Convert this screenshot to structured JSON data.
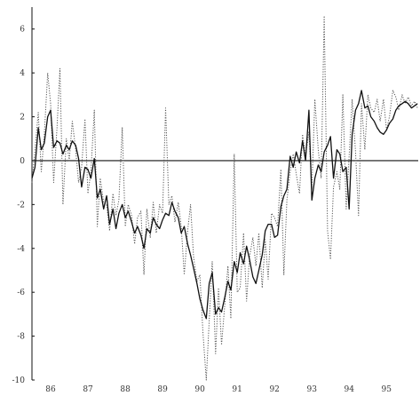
{
  "chart_data": {
    "type": "line",
    "title": "",
    "xlabel": "",
    "ylabel": "",
    "xlim": [
      1985.5,
      1995.85
    ],
    "ylim": [
      -10,
      7
    ],
    "zero_line": true,
    "grid": false,
    "legend": "none",
    "x_tick_values": [
      1986,
      1987,
      1988,
      1989,
      1990,
      1991,
      1992,
      1993,
      1994,
      1995
    ],
    "x_tick_labels": [
      "86",
      "87",
      "88",
      "89",
      "90",
      "91",
      "92",
      "93",
      "94",
      "95"
    ],
    "y_tick_values": [
      6,
      4,
      2,
      0,
      -2,
      -4,
      -6,
      -8,
      -10
    ],
    "y_tick_labels": [
      "6",
      "4",
      "2",
      "0",
      "-2",
      "-4",
      "-6",
      "-8",
      "-10"
    ],
    "series": [
      {
        "style": "solid",
        "color": "#111111",
        "x": [
          1985.5,
          1985.58,
          1985.67,
          1985.75,
          1985.83,
          1985.92,
          1986.0,
          1986.08,
          1986.17,
          1986.25,
          1986.33,
          1986.42,
          1986.5,
          1986.58,
          1986.67,
          1986.75,
          1986.83,
          1986.92,
          1987.0,
          1987.08,
          1987.17,
          1987.25,
          1987.33,
          1987.42,
          1987.5,
          1987.58,
          1987.67,
          1987.75,
          1987.83,
          1987.92,
          1988.0,
          1988.08,
          1988.17,
          1988.25,
          1988.33,
          1988.42,
          1988.5,
          1988.58,
          1988.67,
          1988.75,
          1988.83,
          1988.92,
          1989.0,
          1989.08,
          1989.17,
          1989.25,
          1989.33,
          1989.42,
          1989.5,
          1989.58,
          1989.67,
          1989.75,
          1989.83,
          1989.92,
          1990.0,
          1990.08,
          1990.17,
          1990.25,
          1990.33,
          1990.42,
          1990.5,
          1990.58,
          1990.67,
          1990.75,
          1990.83,
          1990.92,
          1991.0,
          1991.08,
          1991.17,
          1991.25,
          1991.33,
          1991.42,
          1991.5,
          1991.58,
          1991.67,
          1991.75,
          1991.83,
          1991.92,
          1992.0,
          1992.08,
          1992.17,
          1992.25,
          1992.33,
          1992.42,
          1992.5,
          1992.58,
          1992.67,
          1992.75,
          1992.83,
          1992.92,
          1993.0,
          1993.08,
          1993.17,
          1993.25,
          1993.33,
          1993.42,
          1993.5,
          1993.58,
          1993.67,
          1993.75,
          1993.83,
          1993.92,
          1994.0,
          1994.08,
          1994.17,
          1994.25,
          1994.33,
          1994.42,
          1994.5,
          1994.58,
          1994.67,
          1994.75,
          1994.83,
          1994.92,
          1995.0,
          1995.08,
          1995.17,
          1995.25,
          1995.33,
          1995.42,
          1995.5,
          1995.58,
          1995.67,
          1995.75,
          1995.83
        ],
        "y": [
          -0.8,
          -0.3,
          1.5,
          0.5,
          0.8,
          2.0,
          2.3,
          0.6,
          0.9,
          0.8,
          0.3,
          0.7,
          0.5,
          0.9,
          0.7,
          0.1,
          -1.2,
          -0.3,
          -0.4,
          -0.8,
          0.1,
          -1.7,
          -1.3,
          -2.2,
          -1.6,
          -2.9,
          -2.2,
          -3.1,
          -2.4,
          -2.0,
          -2.6,
          -2.3,
          -2.8,
          -3.3,
          -3.0,
          -3.4,
          -4.0,
          -3.1,
          -3.3,
          -2.6,
          -2.9,
          -3.1,
          -2.7,
          -2.4,
          -2.5,
          -1.9,
          -2.3,
          -2.6,
          -3.3,
          -3.0,
          -3.8,
          -4.3,
          -4.9,
          -5.6,
          -6.3,
          -6.8,
          -7.2,
          -5.6,
          -5.1,
          -7.0,
          -6.7,
          -6.9,
          -6.2,
          -5.5,
          -5.9,
          -4.6,
          -5.1,
          -4.2,
          -4.7,
          -3.9,
          -4.5,
          -5.3,
          -5.6,
          -5.0,
          -4.3,
          -3.2,
          -2.9,
          -2.9,
          -3.5,
          -3.4,
          -2.1,
          -1.6,
          -1.3,
          0.2,
          -0.3,
          0.4,
          -0.1,
          0.9,
          0.0,
          2.3,
          -1.8,
          -0.8,
          -0.2,
          -0.5,
          0.4,
          0.7,
          1.1,
          -0.8,
          0.5,
          0.3,
          -0.5,
          -0.3,
          -2.2,
          1.2,
          2.3,
          2.6,
          3.2,
          2.4,
          2.5,
          2.0,
          1.8,
          1.5,
          1.3,
          1.2,
          1.4,
          1.7,
          1.9,
          2.3,
          2.5,
          2.6,
          2.7,
          2.6,
          2.4,
          2.5,
          2.6
        ]
      },
      {
        "style": "dotted",
        "color": "#555555",
        "x": [
          1985.5,
          1985.58,
          1985.67,
          1985.75,
          1985.83,
          1985.92,
          1986.0,
          1986.08,
          1986.17,
          1986.25,
          1986.33,
          1986.42,
          1986.5,
          1986.58,
          1986.67,
          1986.75,
          1986.83,
          1986.92,
          1987.0,
          1987.08,
          1987.17,
          1987.25,
          1987.33,
          1987.42,
          1987.5,
          1987.58,
          1987.67,
          1987.75,
          1987.83,
          1987.92,
          1988.0,
          1988.08,
          1988.17,
          1988.25,
          1988.33,
          1988.42,
          1988.5,
          1988.58,
          1988.67,
          1988.75,
          1988.83,
          1988.92,
          1989.0,
          1989.08,
          1989.17,
          1989.25,
          1989.33,
          1989.42,
          1989.5,
          1989.58,
          1989.67,
          1989.75,
          1989.83,
          1989.92,
          1990.0,
          1990.08,
          1990.17,
          1990.25,
          1990.33,
          1990.42,
          1990.5,
          1990.58,
          1990.67,
          1990.75,
          1990.83,
          1990.92,
          1991.0,
          1991.08,
          1991.17,
          1991.25,
          1991.33,
          1991.42,
          1991.5,
          1991.58,
          1991.67,
          1991.75,
          1991.83,
          1991.92,
          1992.0,
          1992.08,
          1992.17,
          1992.25,
          1992.33,
          1992.42,
          1992.5,
          1992.58,
          1992.67,
          1992.75,
          1992.83,
          1992.92,
          1993.0,
          1993.08,
          1993.17,
          1993.25,
          1993.33,
          1993.42,
          1993.5,
          1993.58,
          1993.67,
          1993.75,
          1993.83,
          1993.92,
          1994.0,
          1994.08,
          1994.17,
          1994.25,
          1994.33,
          1994.42,
          1994.5,
          1994.58,
          1994.67,
          1994.75,
          1994.83,
          1994.92,
          1995.0,
          1995.08,
          1995.17,
          1995.25,
          1995.33,
          1995.42,
          1995.5,
          1995.58,
          1995.67,
          1995.75,
          1995.83
        ],
        "y": [
          -1.0,
          0.5,
          2.2,
          -0.5,
          1.2,
          4.0,
          2.6,
          -1.0,
          1.5,
          4.2,
          -2.0,
          1.0,
          0.0,
          1.8,
          0.5,
          -1.0,
          -0.3,
          1.9,
          -1.5,
          -0.5,
          2.3,
          -3.0,
          -0.8,
          -1.9,
          -2.0,
          -3.2,
          -1.5,
          -2.5,
          -1.8,
          1.5,
          -3.0,
          -2.0,
          -2.5,
          -3.8,
          -2.6,
          -2.3,
          -5.2,
          -2.2,
          -3.5,
          -1.9,
          -3.3,
          -2.0,
          -2.4,
          2.4,
          -2.0,
          -1.6,
          -2.8,
          -1.9,
          -3.0,
          -5.2,
          -3.2,
          -2.0,
          -4.4,
          -5.5,
          -5.2,
          -7.8,
          -10.0,
          -7.3,
          -4.6,
          -8.8,
          -5.8,
          -8.4,
          -6.5,
          -4.8,
          -7.2,
          0.3,
          -6.0,
          -5.8,
          -3.3,
          -6.4,
          -4.4,
          -3.5,
          -4.8,
          -3.3,
          -5.8,
          -3.6,
          -5.4,
          -2.4,
          -2.6,
          -3.0,
          -0.4,
          -5.2,
          -1.8,
          -0.5,
          0.3,
          -0.6,
          -1.5,
          1.2,
          0.2,
          1.3,
          -1.3,
          2.8,
          0.5,
          -0.8,
          6.6,
          -3.2,
          -4.5,
          -1.2,
          -0.5,
          -1.3,
          3.0,
          -2.2,
          0.2,
          2.8,
          0.4,
          -2.5,
          2.6,
          0.5,
          3.0,
          2.4,
          2.2,
          2.8,
          1.8,
          2.8,
          1.4,
          2.0,
          3.2,
          2.9,
          2.3,
          3.0,
          2.6,
          2.9,
          2.5,
          2.7,
          2.4
        ]
      }
    ]
  }
}
